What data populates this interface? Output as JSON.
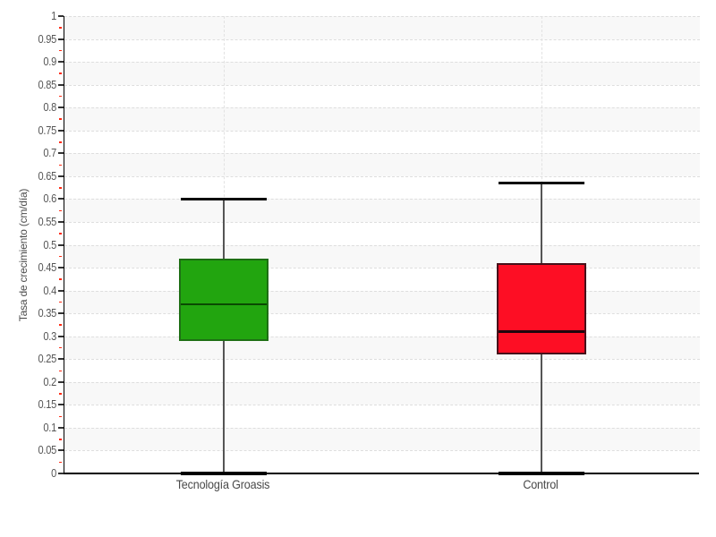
{
  "chart_data": {
    "type": "boxplot",
    "ylabel": "Tasa de crecimiento (cm/día)",
    "ylim": [
      0,
      1
    ],
    "ytick_step": 0.05,
    "yminor_tick_step": 0.025,
    "ytick_labels": [
      "0",
      "0.05",
      "0.1",
      "0.15",
      "0.2",
      "0.25",
      "0.3",
      "0.35",
      "0.4",
      "0.45",
      "0.5",
      "0.55",
      "0.6",
      "0.65",
      "0.7",
      "0.75",
      "0.8",
      "0.85",
      "0.9",
      "0.95",
      "1"
    ],
    "grid": {
      "horizontal": "dashed",
      "vertical_at_categories": "dashed",
      "alternating_bands": true
    },
    "legend": "none",
    "categories": [
      "Tecnología Groasis",
      "Control"
    ],
    "series": [
      {
        "name": "Tecnología Groasis",
        "whisker_low": 0,
        "q1": 0.29,
        "median": 0.37,
        "q3": 0.47,
        "whisker_high": 0.6,
        "fill_color": "#22a50f",
        "border_color": "#1e6f14",
        "median_color": "#0a4a02"
      },
      {
        "name": "Control",
        "whisker_low": 0,
        "q1": 0.26,
        "median": 0.31,
        "q3": 0.46,
        "whisker_high": 0.635,
        "fill_color": "#fd0e24",
        "border_color": "#47101a",
        "median_color": "#20060e"
      }
    ],
    "colors": {
      "band_gray": "#f8f8f8",
      "band_white": "#ffffff",
      "gridline": "#dedede",
      "axis_line": "#000000",
      "major_tick": "#333333",
      "minor_tick": "#ff2a12",
      "tick_label": "#555555",
      "category_label": "#4a4a4a",
      "whisker_line": "#555555",
      "whisker_cap": "#0d0d0d"
    }
  }
}
